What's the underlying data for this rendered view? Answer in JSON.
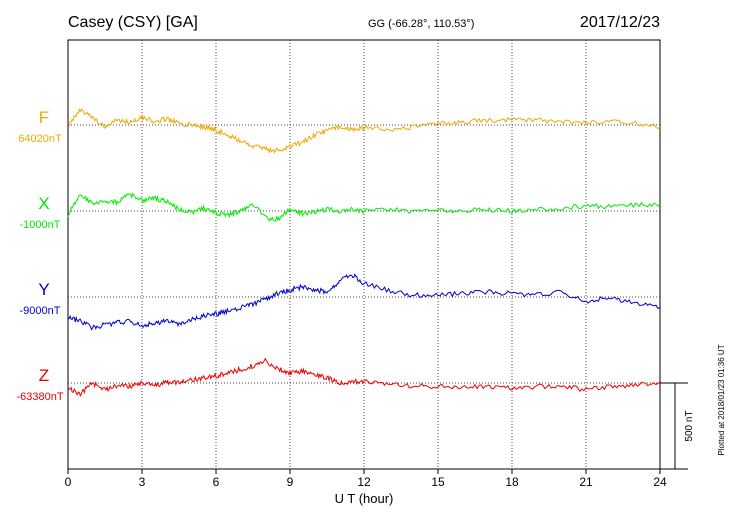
{
  "header": {
    "station": "Casey (CSY)  [GA]",
    "coords": "GG (-66.28°, 110.53°)",
    "date": "2017/12/23"
  },
  "footer": {
    "plotted": "Plotted at 2018/01/23 01:36 UT"
  },
  "chart_data": {
    "type": "line",
    "title": "Casey (CSY)  [GA]",
    "xlabel": "U T (hour)",
    "ylabel": "",
    "xlim": [
      0,
      24
    ],
    "xticks": [
      0,
      3,
      6,
      9,
      12,
      15,
      18,
      21,
      24
    ],
    "grid": true,
    "scale_bar": {
      "label": "500 nT",
      "value": 500,
      "unit": "nT"
    },
    "series": [
      {
        "name": "F",
        "baseline_label": "64020nT",
        "baseline": 64020,
        "color": "#f0a800",
        "x": [
          0,
          0.5,
          1,
          1.5,
          2,
          2.5,
          3,
          3.5,
          4,
          4.5,
          5,
          5.5,
          6,
          6.5,
          7,
          7.5,
          8,
          8.5,
          9,
          9.5,
          10,
          10.5,
          11,
          11.5,
          12,
          13,
          14,
          15,
          16,
          17,
          18,
          19,
          20,
          21,
          22,
          23,
          24
        ],
        "y": [
          64015,
          64105,
          64060,
          64010,
          64050,
          64035,
          64065,
          64040,
          64055,
          64030,
          64020,
          64010,
          63990,
          63960,
          63930,
          63900,
          63880,
          63870,
          63900,
          63920,
          63960,
          63990,
          64010,
          63995,
          64005,
          63990,
          64010,
          64025,
          64040,
          64045,
          64050,
          64045,
          64040,
          64035,
          64040,
          64030,
          64010
        ]
      },
      {
        "name": "X",
        "baseline_label": "-1000nT",
        "baseline": -1000,
        "color": "#00ee00",
        "x": [
          0,
          0.5,
          1,
          1.5,
          2,
          2.5,
          3,
          3.5,
          4,
          4.5,
          5,
          5.5,
          6,
          6.5,
          7,
          7.5,
          8,
          8.5,
          9,
          9.5,
          10,
          10.5,
          11,
          11.5,
          12,
          13,
          14,
          15,
          16,
          17,
          18,
          19,
          20,
          21,
          22,
          23,
          24
        ],
        "y": [
          -1020,
          -910,
          -960,
          -940,
          -950,
          -900,
          -940,
          -925,
          -945,
          -990,
          -1005,
          -985,
          -1010,
          -1025,
          -995,
          -955,
          -1040,
          -1050,
          -985,
          -1015,
          -1005,
          -990,
          -1000,
          -990,
          -1000,
          -990,
          -1000,
          -1000,
          -995,
          -995,
          -1000,
          -995,
          -985,
          -970,
          -975,
          -965,
          -960
        ]
      },
      {
        "name": "Y",
        "baseline_label": "-9000nT",
        "baseline": -9000,
        "color": "#0000cc",
        "x": [
          0,
          0.5,
          1,
          1.5,
          2,
          2.5,
          3,
          3.5,
          4,
          4.5,
          5,
          5.5,
          6,
          6.5,
          7,
          7.5,
          8,
          8.5,
          9,
          9.5,
          10,
          10.5,
          11,
          11.5,
          12,
          13,
          14,
          15,
          16,
          17,
          18,
          19,
          20,
          21,
          22,
          23,
          24
        ],
        "y": [
          -9120,
          -9140,
          -9180,
          -9160,
          -9150,
          -9140,
          -9170,
          -9150,
          -9140,
          -9160,
          -9130,
          -9110,
          -9100,
          -9080,
          -9060,
          -9040,
          -9010,
          -8980,
          -8960,
          -8940,
          -8960,
          -8970,
          -8910,
          -8870,
          -8920,
          -8960,
          -8990,
          -8990,
          -8980,
          -8970,
          -8980,
          -8990,
          -8970,
          -9030,
          -9000,
          -9040,
          -9060
        ]
      },
      {
        "name": "Z",
        "baseline_label": "-63380nT",
        "baseline": -63380,
        "color": "#ee0000",
        "x": [
          0,
          0.5,
          1,
          1.5,
          2,
          2.5,
          3,
          3.5,
          4,
          4.5,
          5,
          5.5,
          6,
          6.5,
          7,
          7.5,
          8,
          8.5,
          9,
          9.5,
          10,
          10.5,
          11,
          11.5,
          12,
          13,
          14,
          15,
          16,
          17,
          18,
          19,
          20,
          21,
          22,
          23,
          24
        ],
        "y": [
          -63410,
          -63445,
          -63380,
          -63420,
          -63395,
          -63400,
          -63380,
          -63395,
          -63375,
          -63380,
          -63360,
          -63350,
          -63340,
          -63320,
          -63300,
          -63280,
          -63250,
          -63300,
          -63320,
          -63310,
          -63330,
          -63350,
          -63380,
          -63375,
          -63370,
          -63385,
          -63395,
          -63400,
          -63400,
          -63405,
          -63410,
          -63400,
          -63395,
          -63420,
          -63400,
          -63390,
          -63375
        ]
      }
    ]
  }
}
